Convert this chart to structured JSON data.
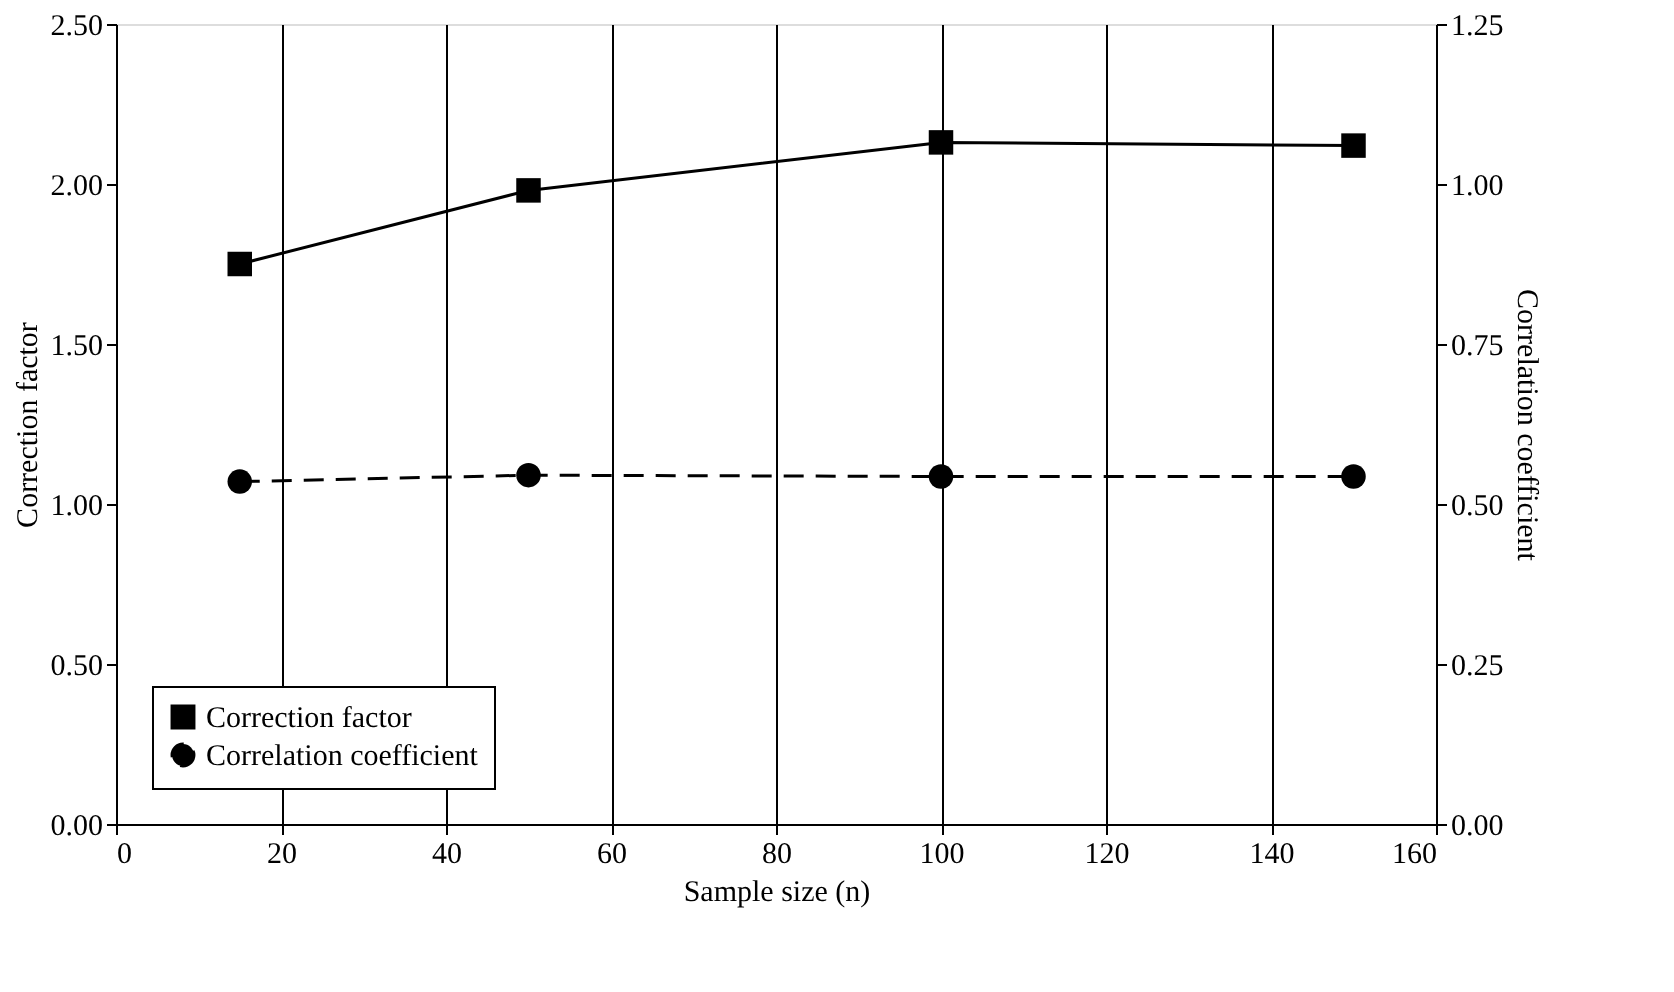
{
  "chart_data": {
    "type": "line",
    "xlabel": "Sample size (n)",
    "ylabel": "Correction factor",
    "y2label": "Correlation coefficient",
    "x": [
      15,
      50,
      100,
      150
    ],
    "series": [
      {
        "name": "Correction factor",
        "color": "#000000",
        "values": [
          1.75,
          1.98,
          2.13,
          2.12
        ],
        "marker": "square",
        "line_style": "solid"
      },
      {
        "name": "Correlation coefficient",
        "color": "#000000",
        "values": [
          0.535,
          0.545,
          0.543,
          0.543
        ],
        "marker": "circle",
        "line_style": "dashed",
        "axis": "y2"
      }
    ],
    "xlim": [
      0,
      160
    ],
    "xticks": [
      0,
      20,
      40,
      60,
      80,
      100,
      120,
      140,
      160
    ],
    "ylim": [
      0,
      2.5
    ],
    "yticks": [
      {
        "value": 0,
        "label": "0.00"
      },
      {
        "value": 0.5,
        "label": "0.50"
      },
      {
        "value": 1,
        "label": "1.00"
      },
      {
        "value": 1.5,
        "label": "1.50"
      },
      {
        "value": 2,
        "label": "2.00"
      },
      {
        "value": 2.5,
        "label": "2.50"
      }
    ],
    "y2lim": [
      0,
      1.25
    ],
    "y2ticks": [
      {
        "value": 0,
        "label": "0.00"
      },
      {
        "value": 0.25,
        "label": "0.25"
      },
      {
        "value": 0.5,
        "label": "0.50"
      },
      {
        "value": 0.75,
        "label": "0.75"
      },
      {
        "value": 1,
        "label": "1.00"
      },
      {
        "value": 1.25,
        "label": "1.25"
      }
    ],
    "grid": "x",
    "legend": "bottom left"
  }
}
